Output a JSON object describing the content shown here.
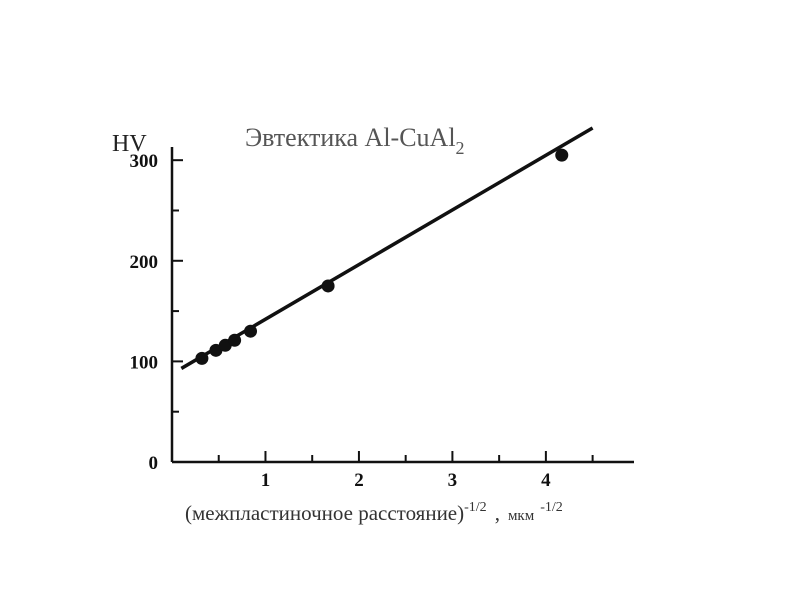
{
  "chart_data": {
    "type": "line",
    "title": "Эвтектика Al-CuAl",
    "title_subscript": "2",
    "ylabel": "HV",
    "xlabel": "(межпластиночное расстояние)",
    "xlabel_exponent": "-1/2",
    "xlabel_separator": ",",
    "xunit": "мкм",
    "xunit_exponent": "-1/2",
    "xlim": [
      0,
      4.9
    ],
    "ylim": [
      0,
      330
    ],
    "x_ticks": [
      {
        "value": 1,
        "label": "1"
      },
      {
        "value": 2,
        "label": "2"
      },
      {
        "value": 3,
        "label": "3"
      },
      {
        "value": 4,
        "label": "4"
      }
    ],
    "y_ticks": [
      {
        "value": 0,
        "label": "0"
      },
      {
        "value": 100,
        "label": "100"
      },
      {
        "value": 200,
        "label": "200"
      },
      {
        "value": 300,
        "label": "300"
      }
    ],
    "grid": false,
    "series": [
      {
        "points": [
          {
            "x": 0.32,
            "y": 103
          },
          {
            "x": 0.47,
            "y": 111
          },
          {
            "x": 0.57,
            "y": 116
          },
          {
            "x": 0.67,
            "y": 121
          },
          {
            "x": 0.84,
            "y": 130
          },
          {
            "x": 1.67,
            "y": 175
          },
          {
            "x": 4.17,
            "y": 305
          }
        ]
      }
    ],
    "fit_line": {
      "x": [
        0.1,
        4.5
      ],
      "y": [
        93,
        332
      ]
    }
  }
}
